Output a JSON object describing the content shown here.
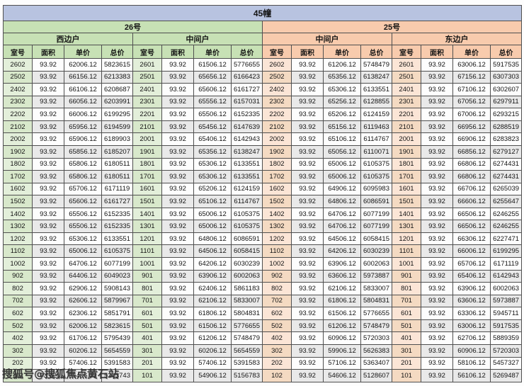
{
  "watermark": {
    "text": "搜狐号@搜狐焦点黄石站"
  },
  "colors": {
    "banner_blue": "#b8c3e0",
    "section_green": "#c7e1b5",
    "section_orange": "#f8cbad",
    "room_green": "#e3efda",
    "room_orange": "#fbe5d6",
    "stripe_gray": "#e9e9e9",
    "border": "#4f4f4f"
  },
  "table": {
    "title": "45幢",
    "sections": [
      {
        "label": "26号"
      },
      {
        "label": "25号"
      }
    ],
    "column_headers": [
      "室号",
      "面积",
      "单价",
      "总价"
    ],
    "groups": [
      {
        "section": "26号",
        "unit_label": "西边户",
        "rows": [
          [
            "2602",
            "93.92",
            "62006.12",
            "5823615"
          ],
          [
            "2502",
            "93.92",
            "66156.12",
            "6213383"
          ],
          [
            "2402",
            "93.92",
            "66106.12",
            "6208687"
          ],
          [
            "2302",
            "93.92",
            "66056.12",
            "6203991"
          ],
          [
            "2202",
            "93.92",
            "66006.12",
            "6199295"
          ],
          [
            "2102",
            "93.92",
            "65956.12",
            "6194599"
          ],
          [
            "2002",
            "93.92",
            "65906.12",
            "6189903"
          ],
          [
            "1902",
            "93.92",
            "65856.12",
            "6185207"
          ],
          [
            "1802",
            "93.92",
            "65806.12",
            "6180511"
          ],
          [
            "1702",
            "93.92",
            "65806.12",
            "6180511"
          ],
          [
            "1602",
            "93.92",
            "65706.12",
            "6171119"
          ],
          [
            "1502",
            "93.92",
            "65606.12",
            "6161727"
          ],
          [
            "1402",
            "93.92",
            "65506.12",
            "6152335"
          ],
          [
            "1302",
            "93.92",
            "65506.12",
            "6152335"
          ],
          [
            "1202",
            "93.92",
            "65306.12",
            "6133551"
          ],
          [
            "1102",
            "93.92",
            "65006.12",
            "6105375"
          ],
          [
            "1002",
            "93.92",
            "64706.12",
            "6077199"
          ],
          [
            "902",
            "93.92",
            "64406.12",
            "6049023"
          ],
          [
            "802",
            "93.92",
            "62906.12",
            "5908143"
          ],
          [
            "702",
            "93.92",
            "62606.12",
            "5879967"
          ],
          [
            "602",
            "93.92",
            "62306.12",
            "5851791"
          ],
          [
            "502",
            "93.92",
            "62006.12",
            "5823615"
          ],
          [
            "402",
            "93.92",
            "61706.12",
            "5795439"
          ],
          [
            "302",
            "93.92",
            "60206.12",
            "5654559"
          ],
          [
            "202",
            "93.92",
            "57406.12",
            "5391583"
          ],
          [
            "102",
            "93.92",
            "55406.12",
            "5203743"
          ]
        ]
      },
      {
        "section": "26号",
        "unit_label": "中间户",
        "rows": [
          [
            "2601",
            "93.92",
            "61506.12",
            "5776655"
          ],
          [
            "2501",
            "93.92",
            "65656.12",
            "6166423"
          ],
          [
            "2401",
            "93.92",
            "65606.12",
            "6161727"
          ],
          [
            "2301",
            "93.92",
            "65556.12",
            "6157031"
          ],
          [
            "2201",
            "93.92",
            "65506.12",
            "6152335"
          ],
          [
            "2101",
            "93.92",
            "65456.12",
            "6147639"
          ],
          [
            "2001",
            "93.92",
            "65406.12",
            "6142943"
          ],
          [
            "1901",
            "93.92",
            "65356.12",
            "6138247"
          ],
          [
            "1801",
            "93.92",
            "65306.12",
            "6133551"
          ],
          [
            "1701",
            "93.92",
            "65306.12",
            "6133551"
          ],
          [
            "1601",
            "93.92",
            "65206.12",
            "6124159"
          ],
          [
            "1501",
            "93.92",
            "65106.12",
            "6114767"
          ],
          [
            "1401",
            "93.92",
            "65006.12",
            "6105375"
          ],
          [
            "1301",
            "93.92",
            "65006.12",
            "6105375"
          ],
          [
            "1201",
            "93.92",
            "64806.12",
            "6086591"
          ],
          [
            "1101",
            "93.92",
            "64506.12",
            "6058415"
          ],
          [
            "1001",
            "93.92",
            "64206.12",
            "6030239"
          ],
          [
            "901",
            "93.92",
            "63906.12",
            "6002063"
          ],
          [
            "801",
            "93.92",
            "62406.12",
            "5861183"
          ],
          [
            "701",
            "93.92",
            "62106.12",
            "5833007"
          ],
          [
            "601",
            "93.92",
            "61806.12",
            "5804831"
          ],
          [
            "501",
            "93.92",
            "61506.12",
            "5776655"
          ],
          [
            "401",
            "93.92",
            "61206.12",
            "5748479"
          ],
          [
            "301",
            "93.92",
            "60206.12",
            "5654559"
          ],
          [
            "201",
            "93.92",
            "57406.12",
            "5391583"
          ],
          [
            "101",
            "93.92",
            "54906.12",
            "5156783"
          ]
        ]
      },
      {
        "section": "25号",
        "unit_label": "中间户",
        "rows": [
          [
            "2602",
            "93.92",
            "61206.12",
            "5748479"
          ],
          [
            "2502",
            "93.92",
            "65356.12",
            "6138247"
          ],
          [
            "2402",
            "93.92",
            "65306.12",
            "6133551"
          ],
          [
            "2302",
            "93.92",
            "65256.12",
            "6128855"
          ],
          [
            "2202",
            "93.92",
            "65206.12",
            "6124159"
          ],
          [
            "2102",
            "93.92",
            "65156.12",
            "6119463"
          ],
          [
            "2002",
            "93.92",
            "65106.12",
            "6114767"
          ],
          [
            "1902",
            "93.92",
            "65056.12",
            "6110071"
          ],
          [
            "1802",
            "93.92",
            "65006.12",
            "6105375"
          ],
          [
            "1702",
            "93.92",
            "65006.12",
            "6105375"
          ],
          [
            "1602",
            "93.92",
            "64906.12",
            "6095983"
          ],
          [
            "1502",
            "93.92",
            "64806.12",
            "6086591"
          ],
          [
            "1402",
            "93.92",
            "64706.12",
            "6077199"
          ],
          [
            "1302",
            "93.92",
            "64706.12",
            "6077199"
          ],
          [
            "1202",
            "93.92",
            "64506.12",
            "6058415"
          ],
          [
            "1102",
            "93.92",
            "64206.12",
            "6030239"
          ],
          [
            "1002",
            "93.92",
            "63906.12",
            "6002063"
          ],
          [
            "902",
            "93.92",
            "63606.12",
            "5973887"
          ],
          [
            "802",
            "93.92",
            "62106.12",
            "5833007"
          ],
          [
            "702",
            "93.92",
            "61806.12",
            "5804831"
          ],
          [
            "602",
            "93.92",
            "61506.12",
            "5776655"
          ],
          [
            "502",
            "93.92",
            "61206.12",
            "5748479"
          ],
          [
            "402",
            "93.92",
            "60906.12",
            "5720303"
          ],
          [
            "302",
            "93.92",
            "59906.12",
            "5626383"
          ],
          [
            "202",
            "93.92",
            "57106.12",
            "5363407"
          ],
          [
            "102",
            "93.92",
            "54606.12",
            "5128607"
          ]
        ]
      },
      {
        "section": "25号",
        "unit_label": "东边户",
        "rows": [
          [
            "2601",
            "93.92",
            "63006.12",
            "5917535"
          ],
          [
            "2501",
            "93.92",
            "67156.12",
            "6307303"
          ],
          [
            "2401",
            "93.92",
            "67106.12",
            "6302607"
          ],
          [
            "2301",
            "93.92",
            "67056.12",
            "6297911"
          ],
          [
            "2201",
            "93.92",
            "67006.12",
            "6293215"
          ],
          [
            "2101",
            "93.92",
            "66956.12",
            "6288519"
          ],
          [
            "2001",
            "93.92",
            "66906.12",
            "6283823"
          ],
          [
            "1901",
            "93.92",
            "66856.12",
            "6279127"
          ],
          [
            "1801",
            "93.92",
            "66806.12",
            "6274431"
          ],
          [
            "1701",
            "93.92",
            "66806.12",
            "6274431"
          ],
          [
            "1601",
            "93.92",
            "66706.12",
            "6265039"
          ],
          [
            "1501",
            "93.92",
            "66606.12",
            "6255647"
          ],
          [
            "1401",
            "93.92",
            "66506.12",
            "6246255"
          ],
          [
            "1301",
            "93.92",
            "66506.12",
            "6246255"
          ],
          [
            "1201",
            "93.92",
            "66306.12",
            "6227471"
          ],
          [
            "1101",
            "93.92",
            "66006.12",
            "6199295"
          ],
          [
            "1001",
            "93.92",
            "65706.12",
            "6171119"
          ],
          [
            "901",
            "93.92",
            "65406.12",
            "6142943"
          ],
          [
            "801",
            "93.92",
            "63906.12",
            "6002063"
          ],
          [
            "701",
            "93.92",
            "63606.12",
            "5973887"
          ],
          [
            "601",
            "93.92",
            "63306.12",
            "5945711"
          ],
          [
            "501",
            "93.92",
            "63006.12",
            "5917535"
          ],
          [
            "401",
            "93.92",
            "62706.12",
            "5889359"
          ],
          [
            "301",
            "93.92",
            "60906.12",
            "5720303"
          ],
          [
            "201",
            "93.92",
            "58106.12",
            "5457327"
          ],
          [
            "101",
            "93.92",
            "56106.12",
            "5269487"
          ]
        ]
      }
    ]
  }
}
